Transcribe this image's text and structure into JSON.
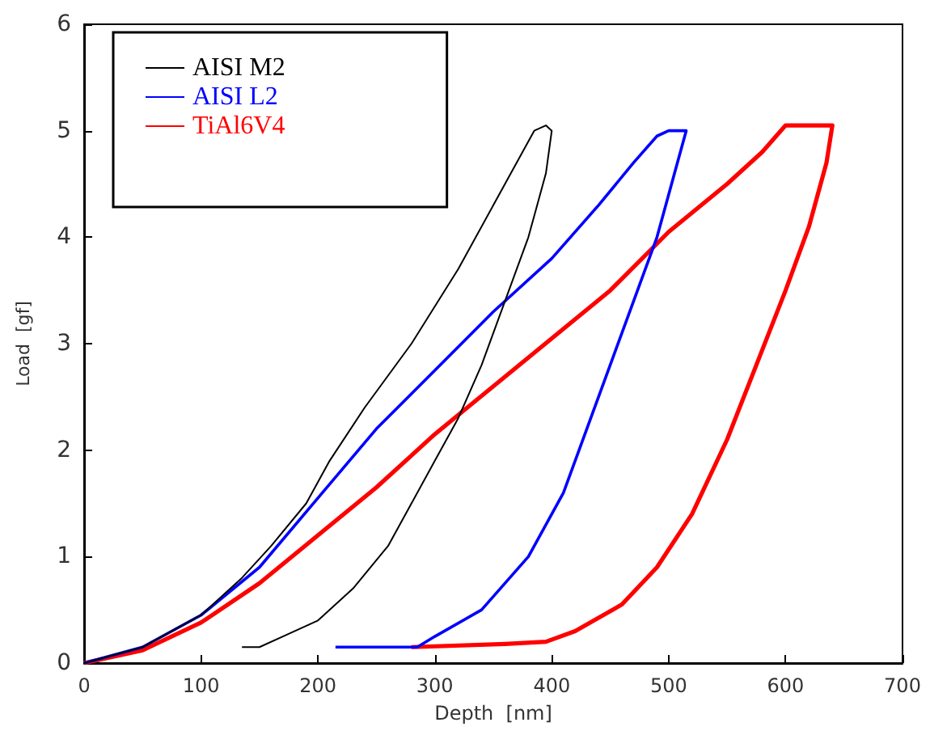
{
  "chart_data": {
    "type": "line",
    "xlabel": "Depth  [nm]",
    "ylabel": "Load  [gf]",
    "xlim": [
      0,
      700
    ],
    "xticks": [
      0,
      100,
      200,
      300,
      400,
      500,
      600,
      700
    ],
    "ylim": [
      0,
      6
    ],
    "yticks": [
      0,
      1,
      2,
      3,
      4,
      5,
      6
    ],
    "grid": false,
    "legend": "top left",
    "marker": "none",
    "line_style": "solid",
    "series": [
      {
        "name": "AISI M2",
        "color": "#000000",
        "x": [
          0,
          50,
          100,
          135,
          160,
          190,
          210,
          240,
          280,
          320,
          350,
          375,
          385,
          395,
          400,
          395,
          380,
          360,
          340,
          320,
          300,
          280,
          260,
          230,
          200,
          170,
          150,
          135
        ],
        "values": [
          0,
          0.15,
          0.45,
          0.8,
          1.1,
          1.5,
          1.9,
          2.4,
          3.0,
          3.7,
          4.3,
          4.8,
          5.0,
          5.05,
          5.0,
          4.6,
          4.0,
          3.4,
          2.8,
          2.3,
          1.9,
          1.5,
          1.1,
          0.7,
          0.4,
          0.25,
          0.15,
          0.15
        ]
      },
      {
        "name": "AISI L2",
        "color": "#0000ff",
        "x": [
          0,
          50,
          100,
          150,
          200,
          250,
          300,
          350,
          400,
          440,
          470,
          490,
          500,
          515,
          505,
          490,
          470,
          450,
          430,
          410,
          380,
          340,
          300,
          285,
          215
        ],
        "values": [
          0,
          0.15,
          0.45,
          0.9,
          1.55,
          2.2,
          2.75,
          3.3,
          3.8,
          4.3,
          4.7,
          4.95,
          5.0,
          5.0,
          4.6,
          4.0,
          3.4,
          2.8,
          2.2,
          1.6,
          1.0,
          0.5,
          0.25,
          0.15,
          0.15
        ]
      },
      {
        "name": "TiAl6V4",
        "color": "#ff0000",
        "x": [
          0,
          50,
          100,
          150,
          200,
          250,
          300,
          350,
          400,
          450,
          500,
          550,
          580,
          600,
          640,
          635,
          620,
          600,
          575,
          550,
          520,
          490,
          460,
          420,
          395,
          360,
          280
        ],
        "values": [
          0,
          0.12,
          0.38,
          0.75,
          1.2,
          1.65,
          2.15,
          2.6,
          3.05,
          3.5,
          4.05,
          4.5,
          4.8,
          5.05,
          5.05,
          4.7,
          4.1,
          3.5,
          2.8,
          2.1,
          1.4,
          0.9,
          0.55,
          0.3,
          0.2,
          0.18,
          0.15
        ]
      }
    ]
  }
}
